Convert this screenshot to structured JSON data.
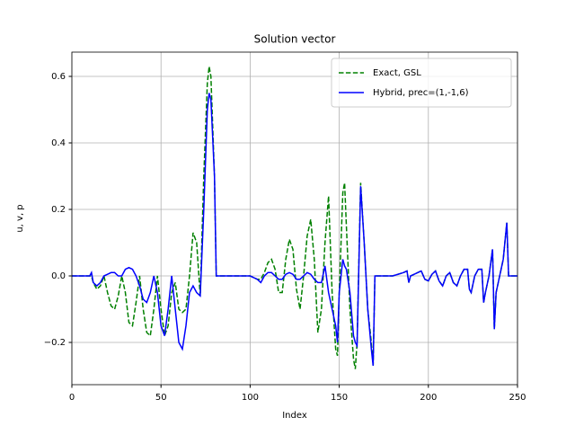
{
  "chart_data": {
    "type": "line",
    "title": "Solution vector",
    "xlabel": "Index",
    "ylabel": "u, v, p",
    "x": [
      0,
      10,
      11,
      12,
      14,
      16,
      18,
      20,
      22,
      24,
      26,
      28,
      30,
      32,
      34,
      36,
      38,
      40,
      42,
      44,
      46,
      48,
      50,
      52,
      54,
      56,
      58,
      60,
      62,
      64,
      66,
      68,
      70,
      72,
      74,
      76,
      77,
      78,
      80,
      81,
      90,
      100,
      104,
      106,
      108,
      110,
      112,
      114,
      116,
      118,
      120,
      122,
      124,
      126,
      128,
      130,
      132,
      134,
      136,
      138,
      140,
      142,
      144,
      146,
      148,
      149,
      150,
      152,
      153,
      154,
      156,
      158,
      159,
      160,
      162,
      164,
      166,
      168,
      169,
      170,
      180,
      186,
      188,
      189,
      190,
      196,
      198,
      200,
      202,
      204,
      206,
      208,
      210,
      212,
      214,
      216,
      218,
      220,
      222,
      223,
      224,
      226,
      228,
      230,
      231,
      232,
      234,
      236,
      237,
      238,
      240,
      242,
      244,
      245,
      250
    ],
    "series": [
      {
        "name": "Exact, GSL",
        "color": "#008000",
        "linestyle": "dashed",
        "values": [
          0,
          0,
          0,
          -0.02,
          -0.04,
          -0.03,
          0,
          -0.05,
          -0.09,
          -0.1,
          -0.06,
          0,
          -0.05,
          -0.14,
          -0.15,
          -0.08,
          0,
          -0.1,
          -0.17,
          -0.18,
          -0.1,
          0,
          -0.1,
          -0.18,
          -0.15,
          -0.05,
          -0.02,
          -0.1,
          -0.11,
          -0.1,
          0,
          0.13,
          0.1,
          -0.06,
          0.3,
          0.58,
          0.63,
          0.6,
          0.3,
          0,
          0,
          0,
          -0.01,
          -0.01,
          0.01,
          0.04,
          0.05,
          0.02,
          -0.05,
          -0.05,
          0.05,
          0.11,
          0.08,
          -0.04,
          -0.1,
          0,
          0.12,
          0.17,
          0.05,
          -0.17,
          -0.1,
          0.1,
          0.24,
          -0.05,
          -0.22,
          -0.24,
          -0.05,
          0.25,
          0.28,
          0.15,
          -0.1,
          -0.25,
          -0.28,
          -0.2,
          0.28,
          0.1,
          -0.1,
          -0.2,
          -0.27,
          0,
          0,
          0.01,
          0.015,
          -0.02,
          0,
          0.015,
          -0.01,
          -0.015,
          0.005,
          0.015,
          -0.015,
          -0.03,
          0,
          0.01,
          -0.02,
          -0.03,
          0,
          0.02,
          0.02,
          -0.04,
          -0.05,
          0,
          0.02,
          0.02,
          -0.08,
          -0.05,
          0,
          0.08,
          -0.16,
          -0.05,
          0,
          0.05,
          0.16,
          0,
          0
        ]
      },
      {
        "name": "Hybrid, prec=(1,-1,6)",
        "color": "#0000ff",
        "linestyle": "solid",
        "values": [
          0,
          0,
          0.01,
          -0.02,
          -0.03,
          -0.02,
          0,
          0.005,
          0.01,
          0.01,
          0,
          0,
          0.02,
          0.025,
          0.02,
          0,
          -0.03,
          -0.07,
          -0.08,
          -0.05,
          0,
          -0.05,
          -0.15,
          -0.18,
          -0.1,
          0,
          -0.1,
          -0.2,
          -0.22,
          -0.15,
          -0.05,
          -0.03,
          -0.05,
          -0.06,
          0.2,
          0.5,
          0.55,
          0.53,
          0.3,
          0,
          0,
          0,
          -0.01,
          -0.02,
          0,
          0.01,
          0.01,
          0,
          -0.01,
          -0.01,
          0.005,
          0.01,
          0.005,
          -0.01,
          -0.01,
          0,
          0.01,
          0.005,
          -0.01,
          -0.02,
          -0.02,
          0.03,
          -0.05,
          -0.1,
          -0.15,
          -0.2,
          -0.05,
          0.05,
          0.03,
          0.02,
          -0.05,
          -0.18,
          -0.2,
          -0.21,
          0.27,
          0.1,
          -0.1,
          -0.22,
          -0.27,
          0,
          0,
          0.01,
          0.015,
          -0.02,
          0,
          0.015,
          -0.01,
          -0.015,
          0.005,
          0.015,
          -0.015,
          -0.03,
          0,
          0.01,
          -0.02,
          -0.03,
          0,
          0.02,
          0.02,
          -0.04,
          -0.05,
          0,
          0.02,
          0.02,
          -0.08,
          -0.05,
          0,
          0.08,
          -0.16,
          -0.05,
          0,
          0.05,
          0.16,
          0,
          0
        ]
      }
    ],
    "xlim": [
      0,
      250
    ],
    "xticks": [
      0,
      50,
      100,
      150,
      200,
      250
    ],
    "ylim": [
      -0.327,
      0.673
    ],
    "yticks": [
      {
        "value": -0.2,
        "label": "−0.2"
      },
      {
        "value": 0,
        "label": "0.0"
      },
      0.2,
      0.4,
      0.6
    ],
    "grid": true,
    "legend": "upper right"
  }
}
